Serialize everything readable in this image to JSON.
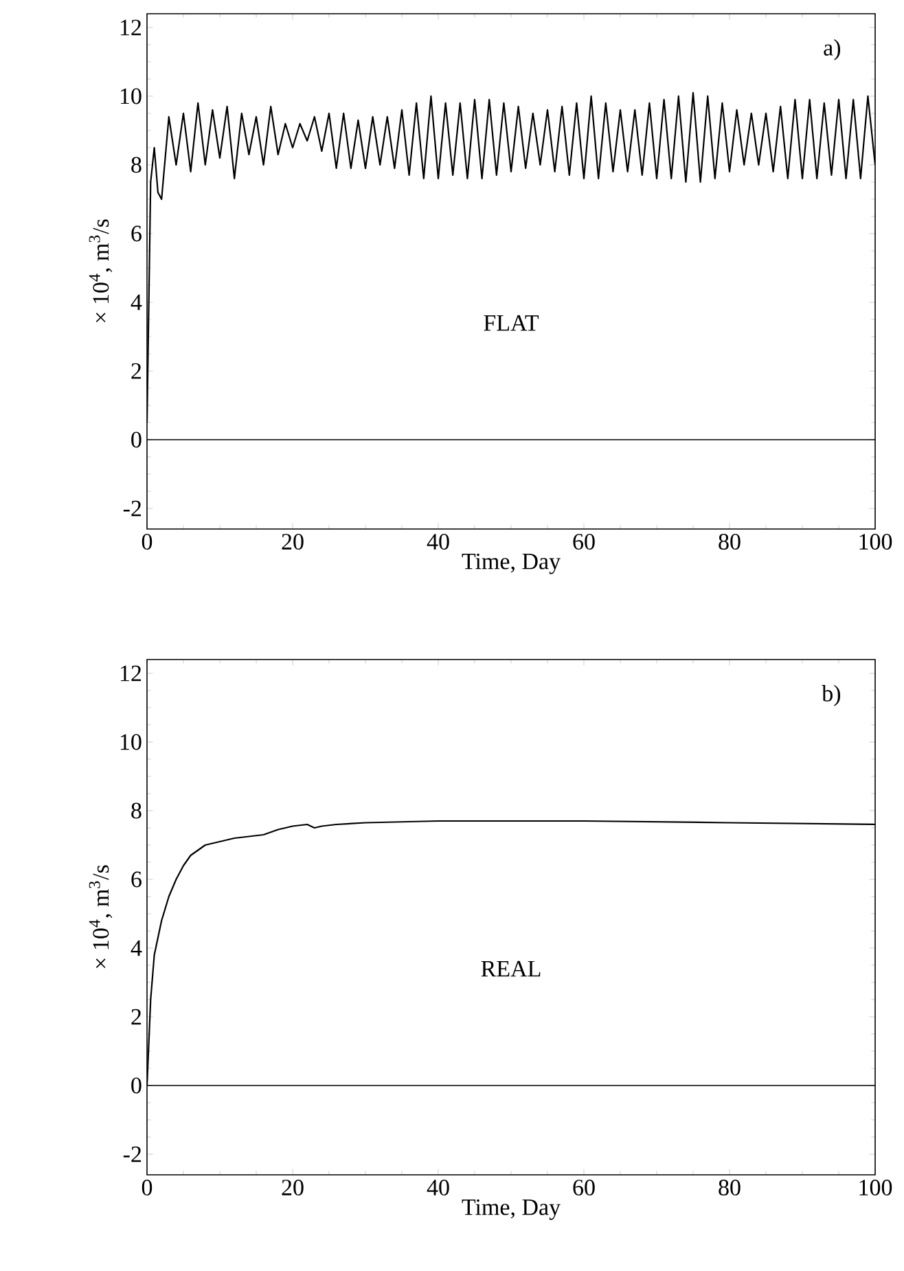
{
  "chart_data": [
    {
      "type": "line",
      "xlabel": "Time, Day",
      "ylabel": "× 10$^{4}$, m$^{3}$/s",
      "annotations": [
        "a)",
        "FLAT"
      ],
      "xlim": [
        0,
        100
      ],
      "ylim": [
        -2.6,
        12.4
      ],
      "xticks": [
        0,
        20,
        40,
        60,
        80,
        100
      ],
      "yticks": [
        -2,
        0,
        2,
        4,
        6,
        8,
        10,
        12
      ],
      "ref_lines": [
        {
          "axis": "y",
          "value": 0,
          "color": "#000000"
        }
      ],
      "series": [
        {
          "color": "#000000",
          "x": [
            0,
            0.5,
            1,
            1.5,
            2,
            3,
            4,
            5,
            6,
            7,
            8,
            9,
            10,
            11,
            12,
            13,
            14,
            15,
            16,
            17,
            18,
            19,
            20,
            21,
            22,
            23,
            24,
            25,
            26,
            27,
            28,
            29,
            30,
            31,
            32,
            33,
            34,
            35,
            36,
            37,
            38,
            39,
            40,
            41,
            42,
            43,
            44,
            45,
            46,
            47,
            48,
            49,
            50,
            51,
            52,
            53,
            54,
            55,
            56,
            57,
            58,
            59,
            60,
            61,
            62,
            63,
            64,
            65,
            66,
            67,
            68,
            69,
            70,
            71,
            72,
            73,
            74,
            75,
            76,
            77,
            78,
            79,
            80,
            81,
            82,
            83,
            84,
            85,
            86,
            87,
            88,
            89,
            90,
            91,
            92,
            93,
            94,
            95,
            96,
            97,
            98,
            99,
            100
          ],
          "values": [
            0.5,
            7.5,
            8.5,
            7.2,
            7.0,
            9.4,
            8.0,
            9.5,
            7.8,
            9.8,
            8.0,
            9.6,
            8.2,
            9.7,
            7.6,
            9.5,
            8.3,
            9.4,
            8.0,
            9.7,
            8.3,
            9.2,
            8.5,
            9.2,
            8.7,
            9.4,
            8.4,
            9.5,
            7.9,
            9.5,
            7.9,
            9.3,
            7.9,
            9.4,
            8.0,
            9.4,
            7.9,
            9.6,
            7.7,
            9.8,
            7.6,
            10.0,
            7.6,
            9.8,
            7.7,
            9.8,
            7.6,
            9.9,
            7.6,
            9.9,
            7.7,
            9.8,
            7.8,
            9.7,
            7.9,
            9.5,
            8.0,
            9.6,
            7.8,
            9.7,
            7.7,
            9.8,
            7.6,
            10.0,
            7.6,
            9.8,
            7.8,
            9.6,
            7.8,
            9.6,
            7.7,
            9.8,
            7.6,
            9.9,
            7.6,
            10.0,
            7.5,
            10.1,
            7.5,
            10.0,
            7.6,
            9.8,
            7.8,
            9.6,
            8.0,
            9.5,
            8.0,
            9.5,
            7.8,
            9.7,
            7.6,
            9.9,
            7.6,
            9.9,
            7.6,
            9.8,
            7.7,
            9.9,
            7.6,
            9.9,
            7.6,
            10.0,
            8.0
          ]
        }
      ]
    },
    {
      "type": "line",
      "xlabel": "Time, Day",
      "ylabel": "× 10$^{4}$, m$^{3}$/s",
      "annotations": [
        "b)",
        "REAL"
      ],
      "xlim": [
        0,
        100
      ],
      "ylim": [
        -2.6,
        12.4
      ],
      "xticks": [
        0,
        20,
        40,
        60,
        80,
        100
      ],
      "yticks": [
        -2,
        0,
        2,
        4,
        6,
        8,
        10,
        12
      ],
      "ref_lines": [
        {
          "axis": "y",
          "value": 0,
          "color": "#000000"
        }
      ],
      "series": [
        {
          "color": "#000000",
          "x": [
            0,
            0.5,
            1,
            2,
            3,
            4,
            5,
            6,
            8,
            10,
            12,
            14,
            16,
            18,
            20,
            22,
            23,
            24,
            26,
            30,
            40,
            60,
            80,
            100
          ],
          "values": [
            0,
            2.5,
            3.8,
            4.8,
            5.5,
            6.0,
            6.4,
            6.7,
            7.0,
            7.1,
            7.2,
            7.25,
            7.3,
            7.45,
            7.55,
            7.6,
            7.5,
            7.55,
            7.6,
            7.65,
            7.7,
            7.7,
            7.65,
            7.6
          ]
        }
      ]
    }
  ]
}
